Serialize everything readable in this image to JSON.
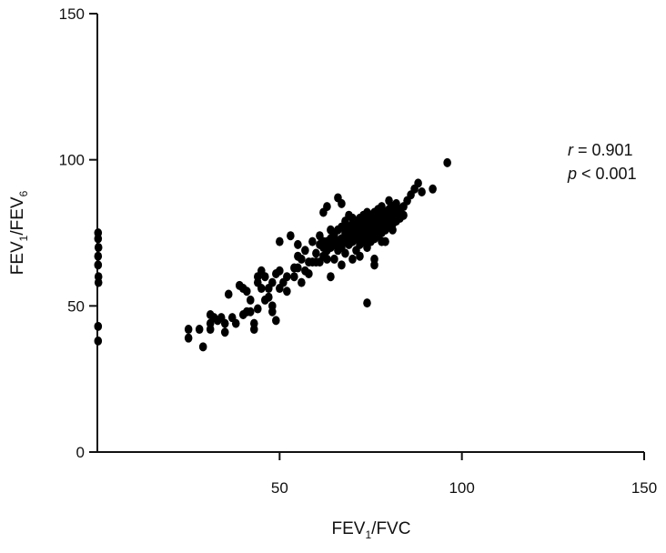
{
  "chart_data": {
    "type": "scatter",
    "title": "",
    "xlabel": {
      "main": "FEV",
      "sub": "1",
      "rest": "/FVC"
    },
    "ylabel": {
      "main": "FEV",
      "sub1": "1",
      "mid": "/FEV",
      "sub2": "6"
    },
    "xlim": [
      0,
      150
    ],
    "ylim": [
      0,
      150
    ],
    "x_ticks": [
      50,
      100,
      150
    ],
    "y_ticks": [
      0,
      50,
      100,
      150
    ],
    "annotation": {
      "r_symbol": "r",
      "r_text": " = 0.901",
      "p_symbol": "p",
      "p_text": " < 0.001"
    },
    "marker_color": "#000000",
    "series": [
      {
        "values": [
          [
            0.2,
            38
          ],
          [
            0.2,
            43
          ],
          [
            0.3,
            58
          ],
          [
            0.3,
            60
          ],
          [
            0.2,
            64
          ],
          [
            0.2,
            67
          ],
          [
            0.3,
            70
          ],
          [
            0.2,
            73
          ],
          [
            0.2,
            75
          ],
          [
            25,
            42
          ],
          [
            25,
            39
          ],
          [
            29,
            36
          ],
          [
            28,
            42
          ],
          [
            31,
            42
          ],
          [
            31,
            44
          ],
          [
            31,
            47
          ],
          [
            32,
            46
          ],
          [
            33,
            45
          ],
          [
            34,
            46
          ],
          [
            35,
            41
          ],
          [
            35,
            44
          ],
          [
            36,
            54
          ],
          [
            37,
            46
          ],
          [
            38,
            44
          ],
          [
            39,
            57
          ],
          [
            40,
            56
          ],
          [
            40,
            47
          ],
          [
            41,
            48
          ],
          [
            41,
            55
          ],
          [
            42,
            52
          ],
          [
            42,
            48
          ],
          [
            43,
            44
          ],
          [
            43,
            42
          ],
          [
            44,
            49
          ],
          [
            44,
            58
          ],
          [
            44,
            60
          ],
          [
            45,
            62
          ],
          [
            45,
            56
          ],
          [
            46,
            60
          ],
          [
            46,
            52
          ],
          [
            47,
            56
          ],
          [
            47,
            53
          ],
          [
            48,
            58
          ],
          [
            48,
            50
          ],
          [
            48,
            48
          ],
          [
            49,
            45
          ],
          [
            49,
            61
          ],
          [
            50,
            56
          ],
          [
            50,
            72
          ],
          [
            50,
            62
          ],
          [
            51,
            58
          ],
          [
            52,
            55
          ],
          [
            52,
            60
          ],
          [
            53,
            74
          ],
          [
            54,
            60
          ],
          [
            54,
            63
          ],
          [
            55,
            63
          ],
          [
            55,
            71
          ],
          [
            55,
            67
          ],
          [
            56,
            58
          ],
          [
            56,
            66
          ],
          [
            57,
            62
          ],
          [
            57,
            69
          ],
          [
            58,
            65
          ],
          [
            58,
            61
          ],
          [
            59,
            65
          ],
          [
            59,
            72
          ],
          [
            60,
            65
          ],
          [
            60,
            68
          ],
          [
            61,
            65
          ],
          [
            61,
            71
          ],
          [
            61,
            74
          ],
          [
            62,
            67
          ],
          [
            62,
            70
          ],
          [
            62,
            72
          ],
          [
            62,
            82
          ],
          [
            63,
            69
          ],
          [
            63,
            72
          ],
          [
            63,
            84
          ],
          [
            63,
            66
          ],
          [
            64,
            60
          ],
          [
            64,
            70
          ],
          [
            64,
            73
          ],
          [
            64,
            76
          ],
          [
            65,
            66
          ],
          [
            65,
            71
          ],
          [
            65,
            74
          ],
          [
            66,
            69
          ],
          [
            66,
            72
          ],
          [
            66,
            76
          ],
          [
            66,
            87
          ],
          [
            67,
            64
          ],
          [
            67,
            70
          ],
          [
            67,
            73
          ],
          [
            67,
            77
          ],
          [
            67,
            85
          ],
          [
            68,
            72
          ],
          [
            68,
            68
          ],
          [
            68,
            75
          ],
          [
            68,
            79
          ],
          [
            69,
            71
          ],
          [
            69,
            74
          ],
          [
            69,
            77
          ],
          [
            69,
            81
          ],
          [
            70,
            66
          ],
          [
            70,
            72
          ],
          [
            70,
            75
          ],
          [
            70,
            78
          ],
          [
            70,
            80
          ],
          [
            71,
            69
          ],
          [
            71,
            73
          ],
          [
            71,
            76
          ],
          [
            71,
            79
          ],
          [
            72,
            71
          ],
          [
            72,
            74
          ],
          [
            72,
            77
          ],
          [
            72,
            80
          ],
          [
            72,
            67
          ],
          [
            73,
            72
          ],
          [
            73,
            75
          ],
          [
            73,
            78
          ],
          [
            73,
            81
          ],
          [
            74,
            51
          ],
          [
            74,
            70
          ],
          [
            74,
            73
          ],
          [
            74,
            76
          ],
          [
            74,
            79
          ],
          [
            74,
            82
          ],
          [
            75,
            72
          ],
          [
            75,
            75
          ],
          [
            75,
            78
          ],
          [
            75,
            80
          ],
          [
            76,
            73
          ],
          [
            76,
            76
          ],
          [
            76,
            79
          ],
          [
            76,
            82
          ],
          [
            76,
            66
          ],
          [
            76,
            64
          ],
          [
            77,
            74
          ],
          [
            77,
            77
          ],
          [
            77,
            80
          ],
          [
            77,
            83
          ],
          [
            78,
            72
          ],
          [
            78,
            75
          ],
          [
            78,
            78
          ],
          [
            78,
            81
          ],
          [
            78,
            84
          ],
          [
            79,
            76
          ],
          [
            79,
            79
          ],
          [
            79,
            82
          ],
          [
            79,
            72
          ],
          [
            80,
            77
          ],
          [
            80,
            80
          ],
          [
            80,
            83
          ],
          [
            80,
            86
          ],
          [
            81,
            78
          ],
          [
            81,
            81
          ],
          [
            81,
            84
          ],
          [
            81,
            76
          ],
          [
            82,
            79
          ],
          [
            82,
            82
          ],
          [
            82,
            85
          ],
          [
            83,
            80
          ],
          [
            83,
            83
          ],
          [
            84,
            81
          ],
          [
            84,
            84
          ],
          [
            85,
            86
          ],
          [
            86,
            88
          ],
          [
            87,
            90
          ],
          [
            88,
            92
          ],
          [
            89,
            89
          ],
          [
            92,
            90
          ],
          [
            96,
            99
          ]
        ]
      }
    ]
  }
}
